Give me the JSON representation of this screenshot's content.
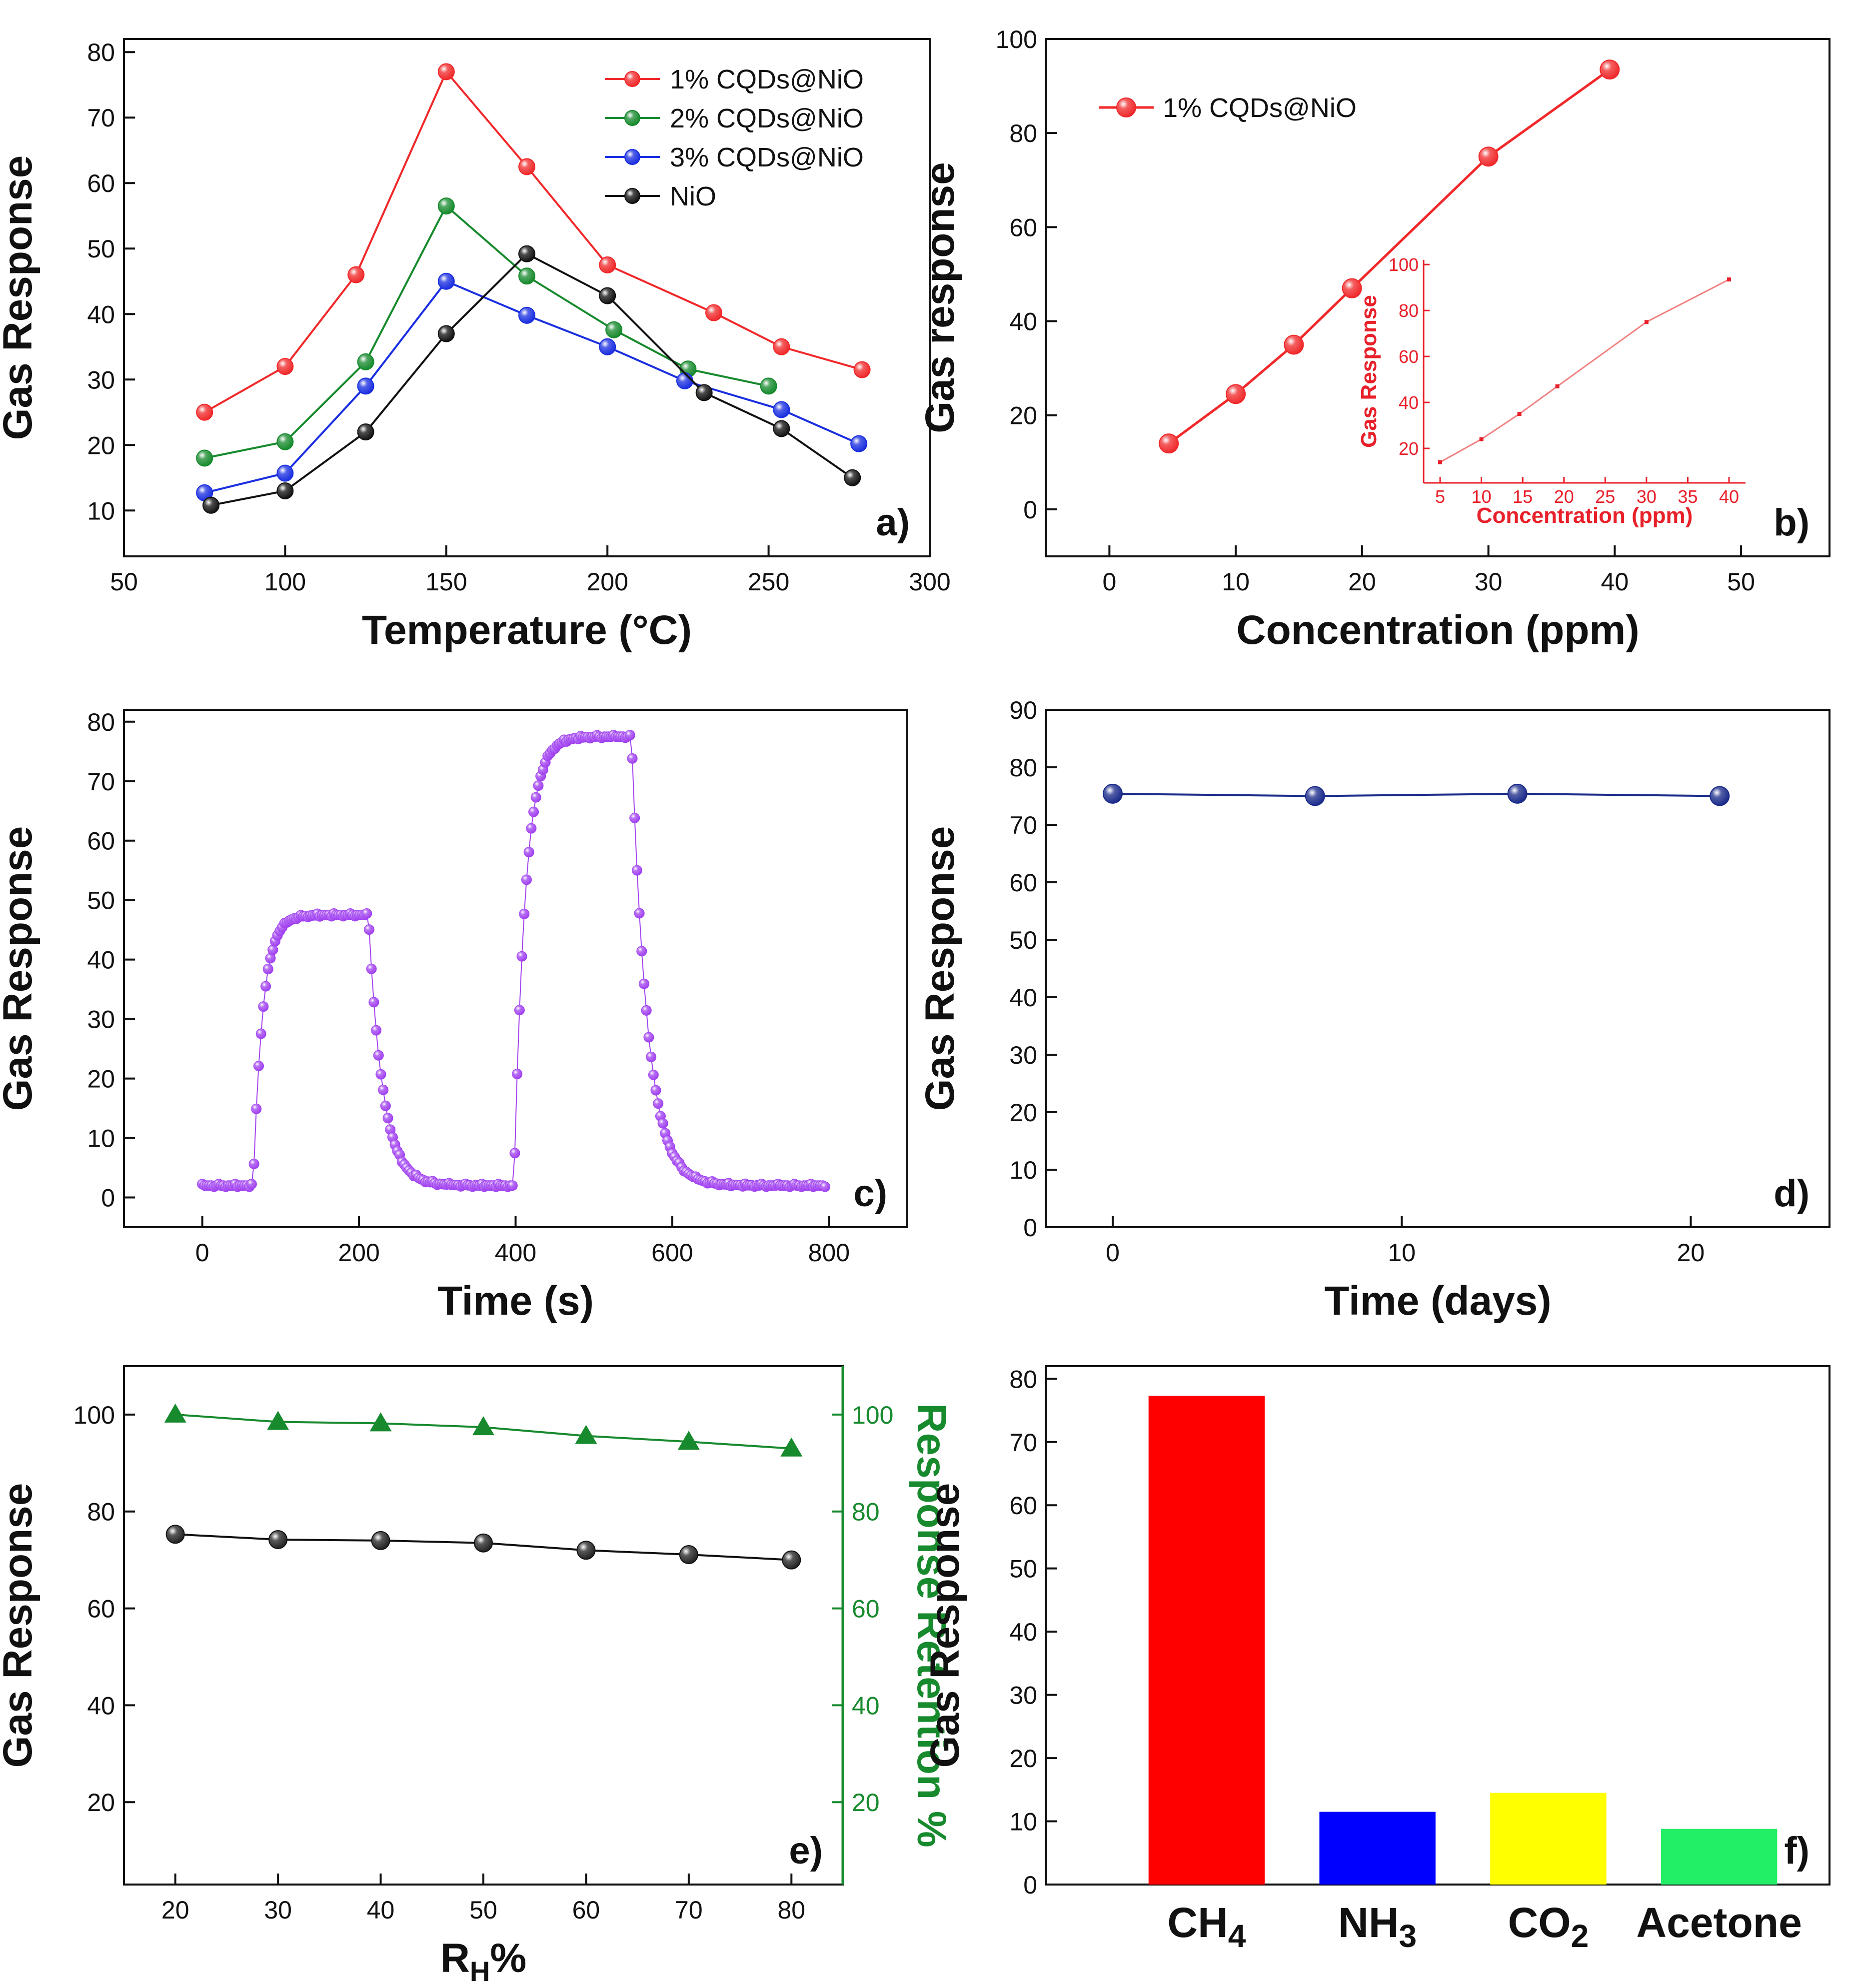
{
  "chart_data": [
    {
      "panel": "a)",
      "type": "line",
      "xlabel": "Temperature (°C)",
      "ylabel": "Gas Response",
      "xlim": [
        50,
        300
      ],
      "ylim": [
        3,
        82
      ],
      "xticks": [
        50,
        100,
        150,
        200,
        250,
        300
      ],
      "yticks": [
        10,
        20,
        30,
        40,
        50,
        60,
        70,
        80
      ],
      "legend_position": "top-right",
      "series": [
        {
          "name": "1% CQDs@NiO",
          "color": "#f0282a",
          "x": [
            75,
            100,
            122,
            150,
            175,
            200,
            233,
            254,
            279
          ],
          "y": [
            25,
            32,
            46,
            77,
            62.5,
            47.5,
            40.2,
            35,
            31.5
          ]
        },
        {
          "name": "2% CQDs@NiO",
          "color": "#178a2d",
          "x": [
            75,
            100,
            125,
            150,
            175,
            202,
            225,
            250
          ],
          "y": [
            18,
            20.5,
            32.7,
            56.5,
            45.8,
            37.6,
            31.6,
            29
          ]
        },
        {
          "name": "3% CQDs@NiO",
          "color": "#1a2ee0",
          "x": [
            75,
            100,
            125,
            150,
            175,
            200,
            224,
            254,
            278
          ],
          "y": [
            12.7,
            15.7,
            29,
            45,
            39.8,
            35,
            29.8,
            25.4,
            20.2
          ]
        },
        {
          "name": "NiO",
          "color": "#111111",
          "x": [
            77,
            100,
            125,
            150,
            175,
            200,
            230,
            254,
            276
          ],
          "y": [
            10.8,
            13,
            22,
            37,
            49.2,
            42.8,
            28,
            22.5,
            15
          ]
        }
      ]
    },
    {
      "panel": "b)",
      "type": "line",
      "xlabel": "Concentration (ppm)",
      "ylabel": "Gas response",
      "xlim": [
        -5,
        57
      ],
      "ylim": [
        -10,
        100
      ],
      "xticks": [
        0,
        10,
        20,
        30,
        40,
        50
      ],
      "yticks": [
        0,
        20,
        40,
        60,
        80,
        100
      ],
      "legend_position": "top-left",
      "series": [
        {
          "name": "1% CQDs@NiO",
          "color": "#f0282a",
          "x": [
            4.7,
            10,
            14.6,
            19.2,
            30,
            39.6
          ],
          "y": [
            14,
            24.5,
            35,
            47,
            75,
            93.5
          ]
        }
      ],
      "inset": {
        "type": "line",
        "xlabel": "Concentration (ppm)",
        "ylabel": "Gas Response",
        "xlim": [
          3,
          42
        ],
        "ylim": [
          5,
          102
        ],
        "xticks": [
          5,
          10,
          15,
          20,
          25,
          30,
          35,
          40
        ],
        "yticks": [
          20,
          40,
          60,
          80,
          100
        ],
        "x": [
          5,
          10,
          14.6,
          19.2,
          30,
          40
        ],
        "y": [
          14,
          24,
          35,
          47,
          75,
          93.5
        ]
      }
    },
    {
      "panel": "c)",
      "type": "scatter",
      "xlabel": "Time (s)",
      "ylabel": "Gas Response",
      "xlim": [
        -100,
        900
      ],
      "ylim": [
        -5,
        82
      ],
      "xticks": [
        0,
        200,
        400,
        600,
        800
      ],
      "yticks": [
        0,
        10,
        20,
        30,
        40,
        50,
        60,
        70,
        80
      ],
      "color": "#a040f0",
      "baseline": 2,
      "pulses": [
        {
          "rise_start": 65,
          "fall_start": 212,
          "peak": 47.5,
          "rise_tau": 12,
          "fall_tau": 18
        },
        {
          "rise_start": 398,
          "fall_start": 548,
          "peak": 77.5,
          "rise_tau": 14,
          "fall_tau": 20
        }
      ],
      "x_end": 795,
      "x_step": 3
    },
    {
      "panel": "d)",
      "type": "line",
      "xlabel": "Time (days)",
      "ylabel": "Gas Response",
      "xlim": [
        -2.3,
        24.8
      ],
      "ylim": [
        0,
        90
      ],
      "xticks": [
        0,
        10,
        20
      ],
      "yticks": [
        0,
        10,
        20,
        30,
        40,
        50,
        60,
        70,
        80,
        90
      ],
      "series": [
        {
          "name": "Gas Response",
          "color": "#1a2a8a",
          "x": [
            0,
            7,
            14,
            21
          ],
          "y": [
            75.4,
            75,
            75.4,
            75
          ]
        }
      ]
    },
    {
      "panel": "e)",
      "type": "line",
      "xlabel": "RH%",
      "xlabel_main": "R",
      "xlabel_sub": "H",
      "xlabel_tail": "%",
      "ylabel": "Gas Response",
      "ylabel_right": "Response Retention %",
      "xlim": [
        15,
        85
      ],
      "ylim": [
        3,
        110
      ],
      "xticks": [
        20,
        30,
        40,
        50,
        60,
        70,
        80
      ],
      "yticks": [
        20,
        40,
        60,
        80,
        100
      ],
      "series": [
        {
          "name": "Gas Response",
          "color": "#111111",
          "marker": "circle",
          "x": [
            20,
            30,
            40,
            50,
            60,
            70,
            80
          ],
          "y": [
            75.3,
            74.2,
            74,
            73.5,
            72,
            71.1,
            70
          ]
        },
        {
          "name": "Response Retention %",
          "color": "#178a2d",
          "marker": "triangle",
          "x": [
            20,
            30,
            40,
            50,
            60,
            70,
            80
          ],
          "y": [
            100,
            98.5,
            98.2,
            97.4,
            95.6,
            94.4,
            93
          ]
        }
      ]
    },
    {
      "panel": "f)",
      "type": "bar",
      "ylabel": "Gas Response",
      "ylim": [
        0,
        82
      ],
      "yticks": [
        0,
        10,
        20,
        30,
        40,
        50,
        60,
        70,
        80
      ],
      "categories": [
        "CH4",
        "NH3",
        "CO2",
        "Acetone"
      ],
      "category_labels": [
        {
          "main": "CH",
          "sub": "4"
        },
        {
          "main": "NH",
          "sub": "3"
        },
        {
          "main": "CO",
          "sub": "2"
        },
        {
          "main": "Acetone",
          "sub": ""
        }
      ],
      "values": [
        77.3,
        11.5,
        14.5,
        8.8
      ],
      "colors": [
        "#ff0000",
        "#0000ff",
        "#ffff00",
        "#22ee66"
      ]
    }
  ]
}
